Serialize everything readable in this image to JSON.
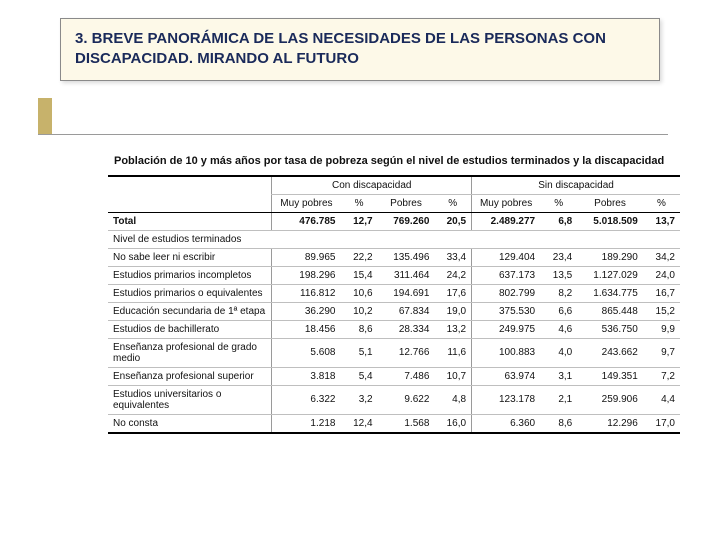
{
  "title_box": {
    "text": "3. BREVE PANORÁMICA DE LAS NECESIDADES DE LAS PERSONAS CON DISCAPACIDAD. MIRANDO AL FUTURO",
    "bg": "#fdf9e8",
    "border": "#8a8a8a",
    "text_color": "#1a2a5a",
    "fontsize": 15
  },
  "side_accent_color": "#c7b26b",
  "caption": "Población de 10 y más años por tasa de pobreza según el nivel de estudios terminados y la discapacidad",
  "table": {
    "groups": [
      "Con discapacidad",
      "Sin discapacidad"
    ],
    "subcols": [
      "Muy pobres",
      "%",
      "Pobres",
      "%"
    ],
    "total_label": "Total",
    "section_label": "Nivel de estudios terminados",
    "total": {
      "con": {
        "muy_pobres": "476.785",
        "muy_pct": "12,7",
        "pobres": "769.260",
        "pob_pct": "20,5"
      },
      "sin": {
        "muy_pobres": "2.489.277",
        "muy_pct": "6,8",
        "pobres": "5.018.509",
        "pob_pct": "13,7"
      }
    },
    "rows": [
      {
        "label": "No sabe leer ni escribir",
        "con": {
          "muy_pobres": "89.965",
          "muy_pct": "22,2",
          "pobres": "135.496",
          "pob_pct": "33,4"
        },
        "sin": {
          "muy_pobres": "129.404",
          "muy_pct": "23,4",
          "pobres": "189.290",
          "pob_pct": "34,2"
        }
      },
      {
        "label": "Estudios primarios incompletos",
        "con": {
          "muy_pobres": "198.296",
          "muy_pct": "15,4",
          "pobres": "311.464",
          "pob_pct": "24,2"
        },
        "sin": {
          "muy_pobres": "637.173",
          "muy_pct": "13,5",
          "pobres": "1.127.029",
          "pob_pct": "24,0"
        }
      },
      {
        "label": "Estudios primarios o equivalentes",
        "con": {
          "muy_pobres": "116.812",
          "muy_pct": "10,6",
          "pobres": "194.691",
          "pob_pct": "17,6"
        },
        "sin": {
          "muy_pobres": "802.799",
          "muy_pct": "8,2",
          "pobres": "1.634.775",
          "pob_pct": "16,7"
        }
      },
      {
        "label": "Educación secundaria de 1ª etapa",
        "con": {
          "muy_pobres": "36.290",
          "muy_pct": "10,2",
          "pobres": "67.834",
          "pob_pct": "19,0"
        },
        "sin": {
          "muy_pobres": "375.530",
          "muy_pct": "6,6",
          "pobres": "865.448",
          "pob_pct": "15,2"
        }
      },
      {
        "label": "Estudios de bachillerato",
        "con": {
          "muy_pobres": "18.456",
          "muy_pct": "8,6",
          "pobres": "28.334",
          "pob_pct": "13,2"
        },
        "sin": {
          "muy_pobres": "249.975",
          "muy_pct": "4,6",
          "pobres": "536.750",
          "pob_pct": "9,9"
        }
      },
      {
        "label": "Enseñanza profesional de grado medio",
        "con": {
          "muy_pobres": "5.608",
          "muy_pct": "5,1",
          "pobres": "12.766",
          "pob_pct": "11,6"
        },
        "sin": {
          "muy_pobres": "100.883",
          "muy_pct": "4,0",
          "pobres": "243.662",
          "pob_pct": "9,7"
        }
      },
      {
        "label": "Enseñanza profesional superior",
        "con": {
          "muy_pobres": "3.818",
          "muy_pct": "5,4",
          "pobres": "7.486",
          "pob_pct": "10,7"
        },
        "sin": {
          "muy_pobres": "63.974",
          "muy_pct": "3,1",
          "pobres": "149.351",
          "pob_pct": "7,2"
        }
      },
      {
        "label": "Estudios universitarios o equivalentes",
        "con": {
          "muy_pobres": "6.322",
          "muy_pct": "3,2",
          "pobres": "9.622",
          "pob_pct": "4,8"
        },
        "sin": {
          "muy_pobres": "123.178",
          "muy_pct": "2,1",
          "pobres": "259.906",
          "pob_pct": "4,4"
        }
      },
      {
        "label": "No consta",
        "con": {
          "muy_pobres": "1.218",
          "muy_pct": "12,4",
          "pobres": "1.568",
          "pob_pct": "16,0"
        },
        "sin": {
          "muy_pobres": "6.360",
          "muy_pct": "8,6",
          "pobres": "12.296",
          "pob_pct": "17,0"
        }
      }
    ],
    "border_color": "#bfbfbf",
    "strong_border_color": "#000000",
    "fontsize": 10
  }
}
